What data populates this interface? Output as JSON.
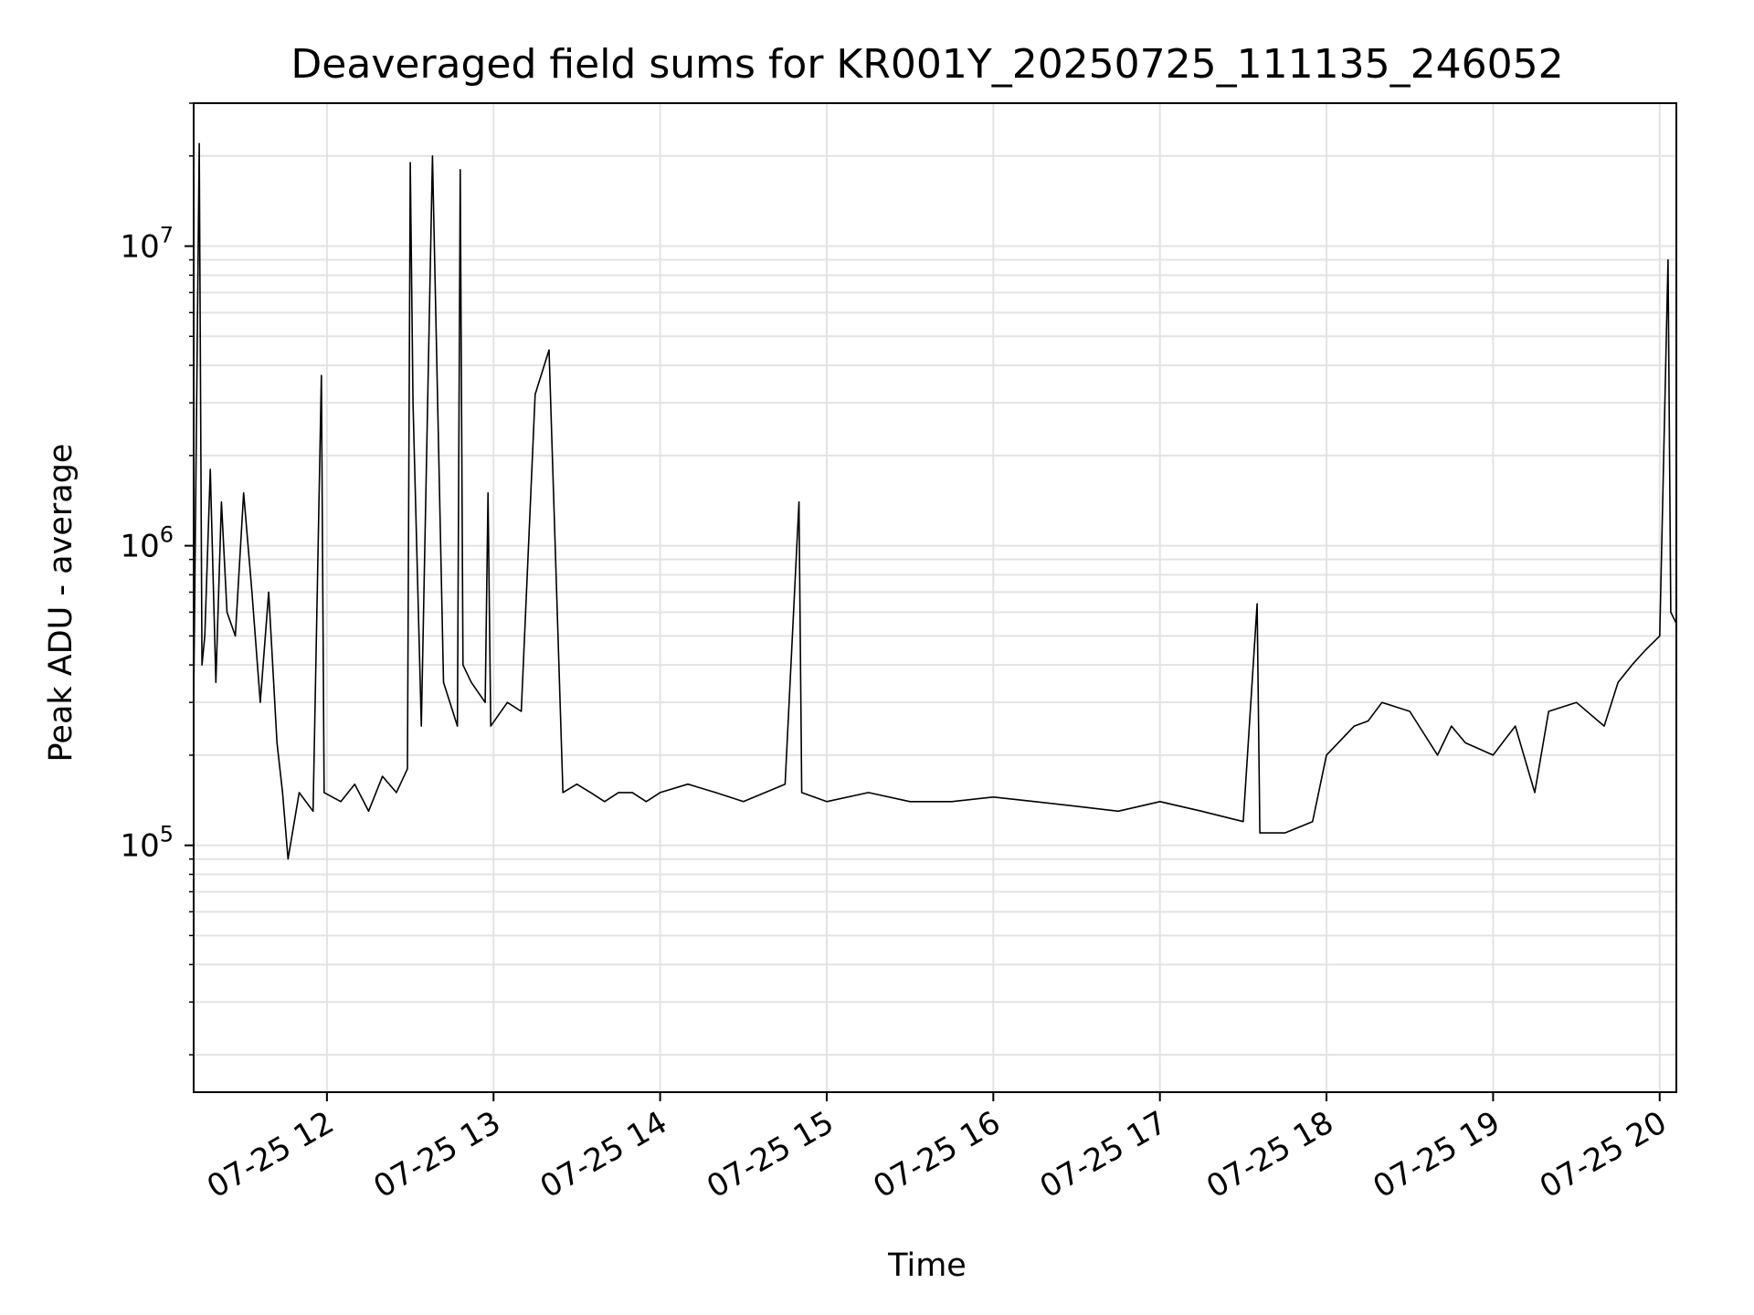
{
  "chart_data": {
    "type": "line",
    "title": "Deaveraged field sums for KR001Y_20250725_111135_246052",
    "xlabel": "Time",
    "ylabel": "Peak ADU - average",
    "y_scale": "log",
    "grid": true,
    "x_tick_labels": [
      "07-25 12",
      "07-25 13",
      "07-25 14",
      "07-25 15",
      "07-25 16",
      "07-25 17",
      "07-25 18",
      "07-25 19",
      "07-25 20"
    ],
    "x_ticks": [
      "2025-07-25T12:00",
      "2025-07-25T13:00",
      "2025-07-25T14:00",
      "2025-07-25T15:00",
      "2025-07-25T16:00",
      "2025-07-25T17:00",
      "2025-07-25T18:00",
      "2025-07-25T19:00",
      "2025-07-25T20:00"
    ],
    "xlim": [
      "2025-07-25T11:12",
      "2025-07-25T20:06"
    ],
    "y_major_ticks": [
      {
        "value": 100000,
        "base": "10",
        "exp": "5"
      },
      {
        "value": 1000000,
        "base": "10",
        "exp": "6"
      },
      {
        "value": 10000000,
        "base": "10",
        "exp": "7"
      }
    ],
    "ylim": [
      15000,
      30000000
    ],
    "series": [
      {
        "color": "#000000",
        "x": [
          "2025-07-25T11:12",
          "2025-07-25T11:14",
          "2025-07-25T11:15",
          "2025-07-25T11:16",
          "2025-07-25T11:18",
          "2025-07-25T11:20",
          "2025-07-25T11:22",
          "2025-07-25T11:24",
          "2025-07-25T11:27",
          "2025-07-25T11:30",
          "2025-07-25T11:33",
          "2025-07-25T11:36",
          "2025-07-25T11:39",
          "2025-07-25T11:42",
          "2025-07-25T11:44",
          "2025-07-25T11:46",
          "2025-07-25T11:50",
          "2025-07-25T11:55",
          "2025-07-25T11:58",
          "2025-07-25T11:59",
          "2025-07-25T12:05",
          "2025-07-25T12:10",
          "2025-07-25T12:15",
          "2025-07-25T12:20",
          "2025-07-25T12:25",
          "2025-07-25T12:29",
          "2025-07-25T12:30",
          "2025-07-25T12:31",
          "2025-07-25T12:34",
          "2025-07-25T12:38",
          "2025-07-25T12:42",
          "2025-07-25T12:47",
          "2025-07-25T12:48",
          "2025-07-25T12:49",
          "2025-07-25T12:52",
          "2025-07-25T12:57",
          "2025-07-25T12:58",
          "2025-07-25T12:59",
          "2025-07-25T13:05",
          "2025-07-25T13:10",
          "2025-07-25T13:15",
          "2025-07-25T13:20",
          "2025-07-25T13:25",
          "2025-07-25T13:30",
          "2025-07-25T13:35",
          "2025-07-25T13:40",
          "2025-07-25T13:45",
          "2025-07-25T13:50",
          "2025-07-25T13:55",
          "2025-07-25T14:00",
          "2025-07-25T14:10",
          "2025-07-25T14:20",
          "2025-07-25T14:30",
          "2025-07-25T14:45",
          "2025-07-25T14:50",
          "2025-07-25T14:51",
          "2025-07-25T15:00",
          "2025-07-25T15:15",
          "2025-07-25T15:30",
          "2025-07-25T15:45",
          "2025-07-25T16:00",
          "2025-07-25T16:15",
          "2025-07-25T16:30",
          "2025-07-25T16:45",
          "2025-07-25T17:00",
          "2025-07-25T17:15",
          "2025-07-25T17:30",
          "2025-07-25T17:35",
          "2025-07-25T17:36",
          "2025-07-25T17:45",
          "2025-07-25T17:55",
          "2025-07-25T18:00",
          "2025-07-25T18:10",
          "2025-07-25T18:15",
          "2025-07-25T18:20",
          "2025-07-25T18:30",
          "2025-07-25T18:40",
          "2025-07-25T18:45",
          "2025-07-25T18:50",
          "2025-07-25T19:00",
          "2025-07-25T19:08",
          "2025-07-25T19:15",
          "2025-07-25T19:20",
          "2025-07-25T19:30",
          "2025-07-25T19:40",
          "2025-07-25T19:45",
          "2025-07-25T19:50",
          "2025-07-25T19:55",
          "2025-07-25T20:00",
          "2025-07-25T20:03",
          "2025-07-25T20:04",
          "2025-07-25T20:06"
        ],
        "y": [
          300000,
          22000000,
          400000,
          500000,
          1800000,
          350000,
          1400000,
          600000,
          500000,
          1500000,
          700000,
          300000,
          700000,
          220000,
          150000,
          90000,
          150000,
          130000,
          3700000,
          150000,
          140000,
          160000,
          130000,
          170000,
          150000,
          180000,
          19000000,
          3000000,
          250000,
          20000000,
          350000,
          250000,
          18000000,
          400000,
          350000,
          300000,
          1500000,
          250000,
          300000,
          280000,
          3200000,
          4500000,
          150000,
          160000,
          150000,
          140000,
          150000,
          150000,
          140000,
          150000,
          160000,
          150000,
          140000,
          160000,
          1400000,
          150000,
          140000,
          150000,
          140000,
          140000,
          145000,
          140000,
          135000,
          130000,
          140000,
          130000,
          120000,
          640000,
          110000,
          110000,
          120000,
          200000,
          250000,
          260000,
          300000,
          280000,
          200000,
          250000,
          220000,
          200000,
          250000,
          150000,
          280000,
          300000,
          250000,
          350000,
          400000,
          450000,
          500000,
          9000000,
          600000,
          550000
        ]
      }
    ]
  }
}
